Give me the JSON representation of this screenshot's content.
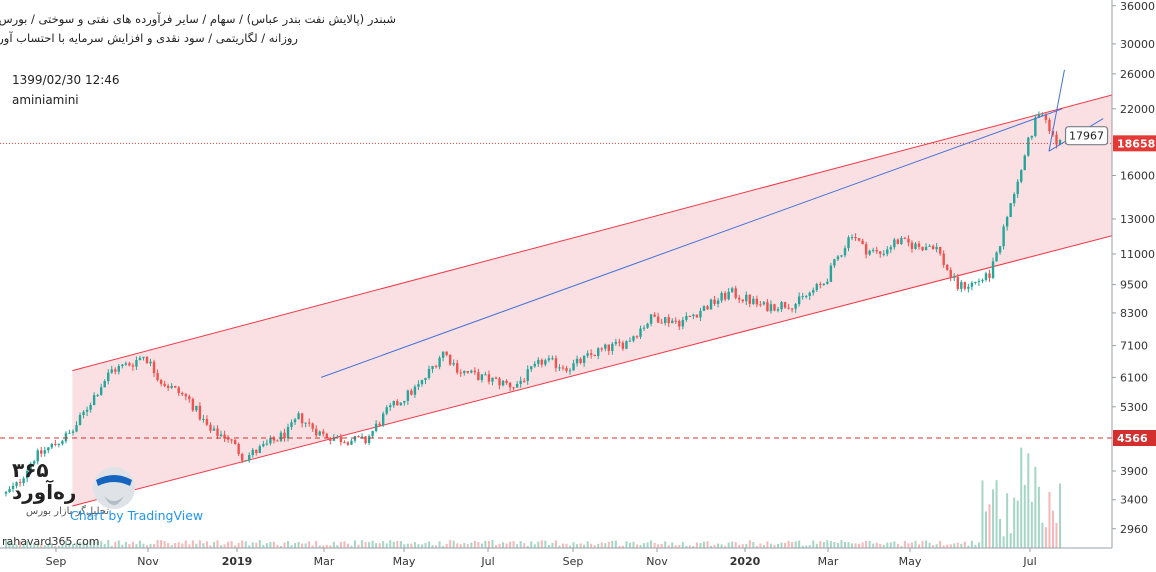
{
  "header": {
    "line1": "شبندر (پالایش نفت بندر عباس) / سهام / سایر فرآورده های نفتی و سوختی / بورس تهران",
    "line2": "روزانه / لگاریتمی / سود نقدی و افزایش سرمایه با احتساب آورده",
    "timestamp": "1399/02/30 12:46",
    "author": "aminiamini"
  },
  "branding": {
    "brand_number": "۳۶۵",
    "brand_name": "ره‌آورد",
    "brand_sub": "تحلیل‌گر بازار بورس",
    "tradingview": "Chart by TradingView",
    "site": "rahavard365.com",
    "logo_icon": "rahavard-logo-icon"
  },
  "colors": {
    "bull": "#26a69a",
    "bear": "#ef5350",
    "channel_line": "#f23645",
    "channel_fill": "#f8d3d6",
    "trend_line": "#4472d8",
    "last_price": "#e53935",
    "support": "#d32f2f",
    "volume_bull": "#a5d6c5",
    "volume_bear": "#f5b7b8"
  },
  "chart_data": {
    "type": "candlestick",
    "scale": "log",
    "timeframe": "daily",
    "ylim": [
      2700,
      37000
    ],
    "x_ticks": [
      "Sep",
      "Nov",
      "2019",
      "Mar",
      "May",
      "Jul",
      "Sep",
      "Nov",
      "2020",
      "Mar",
      "May",
      "Jul"
    ],
    "y_ticks": [
      2960,
      3400,
      3900,
      4566,
      5300,
      6100,
      7100,
      8300,
      9500,
      11000,
      13000,
      16000,
      18658,
      22000,
      26000,
      30000,
      36000
    ],
    "last_price": 18658,
    "support_level": 4566,
    "callout_value": 17967,
    "price_path": [
      {
        "t": 0,
        "v": 3500
      },
      {
        "t": 0.01,
        "v": 3650
      },
      {
        "t": 0.025,
        "v": 4150
      },
      {
        "t": 0.045,
        "v": 4450
      },
      {
        "t": 0.06,
        "v": 4700
      },
      {
        "t": 0.08,
        "v": 5600
      },
      {
        "t": 0.095,
        "v": 6300
      },
      {
        "t": 0.115,
        "v": 6550
      },
      {
        "t": 0.125,
        "v": 6800
      },
      {
        "t": 0.14,
        "v": 6000
      },
      {
        "t": 0.165,
        "v": 5500
      },
      {
        "t": 0.185,
        "v": 4700
      },
      {
        "t": 0.2,
        "v": 4600
      },
      {
        "t": 0.215,
        "v": 4150
      },
      {
        "t": 0.235,
        "v": 4400
      },
      {
        "t": 0.255,
        "v": 4700
      },
      {
        "t": 0.265,
        "v": 5050
      },
      {
        "t": 0.285,
        "v": 4650
      },
      {
        "t": 0.3,
        "v": 4550
      },
      {
        "t": 0.325,
        "v": 4500
      },
      {
        "t": 0.345,
        "v": 5200
      },
      {
        "t": 0.375,
        "v": 5900
      },
      {
        "t": 0.395,
        "v": 6900
      },
      {
        "t": 0.41,
        "v": 6300
      },
      {
        "t": 0.43,
        "v": 6100
      },
      {
        "t": 0.46,
        "v": 5850
      },
      {
        "t": 0.485,
        "v": 6600
      },
      {
        "t": 0.51,
        "v": 6400
      },
      {
        "t": 0.535,
        "v": 6900
      },
      {
        "t": 0.56,
        "v": 7200
      },
      {
        "t": 0.585,
        "v": 8150
      },
      {
        "t": 0.61,
        "v": 7950
      },
      {
        "t": 0.635,
        "v": 8600
      },
      {
        "t": 0.655,
        "v": 9150
      },
      {
        "t": 0.685,
        "v": 8550
      },
      {
        "t": 0.715,
        "v": 8700
      },
      {
        "t": 0.74,
        "v": 9600
      },
      {
        "t": 0.75,
        "v": 10600
      },
      {
        "t": 0.765,
        "v": 12200
      },
      {
        "t": 0.775,
        "v": 11300
      },
      {
        "t": 0.79,
        "v": 11000
      },
      {
        "t": 0.805,
        "v": 11700
      },
      {
        "t": 0.825,
        "v": 11400
      },
      {
        "t": 0.84,
        "v": 11500
      },
      {
        "t": 0.85,
        "v": 10300
      },
      {
        "t": 0.86,
        "v": 9400
      },
      {
        "t": 0.875,
        "v": 9550
      },
      {
        "t": 0.89,
        "v": 10000
      },
      {
        "t": 0.9,
        "v": 11800
      },
      {
        "t": 0.915,
        "v": 16000
      },
      {
        "t": 0.925,
        "v": 19000
      },
      {
        "t": 0.935,
        "v": 22000
      },
      {
        "t": 0.945,
        "v": 19500
      },
      {
        "t": 0.953,
        "v": 18658
      }
    ]
  }
}
